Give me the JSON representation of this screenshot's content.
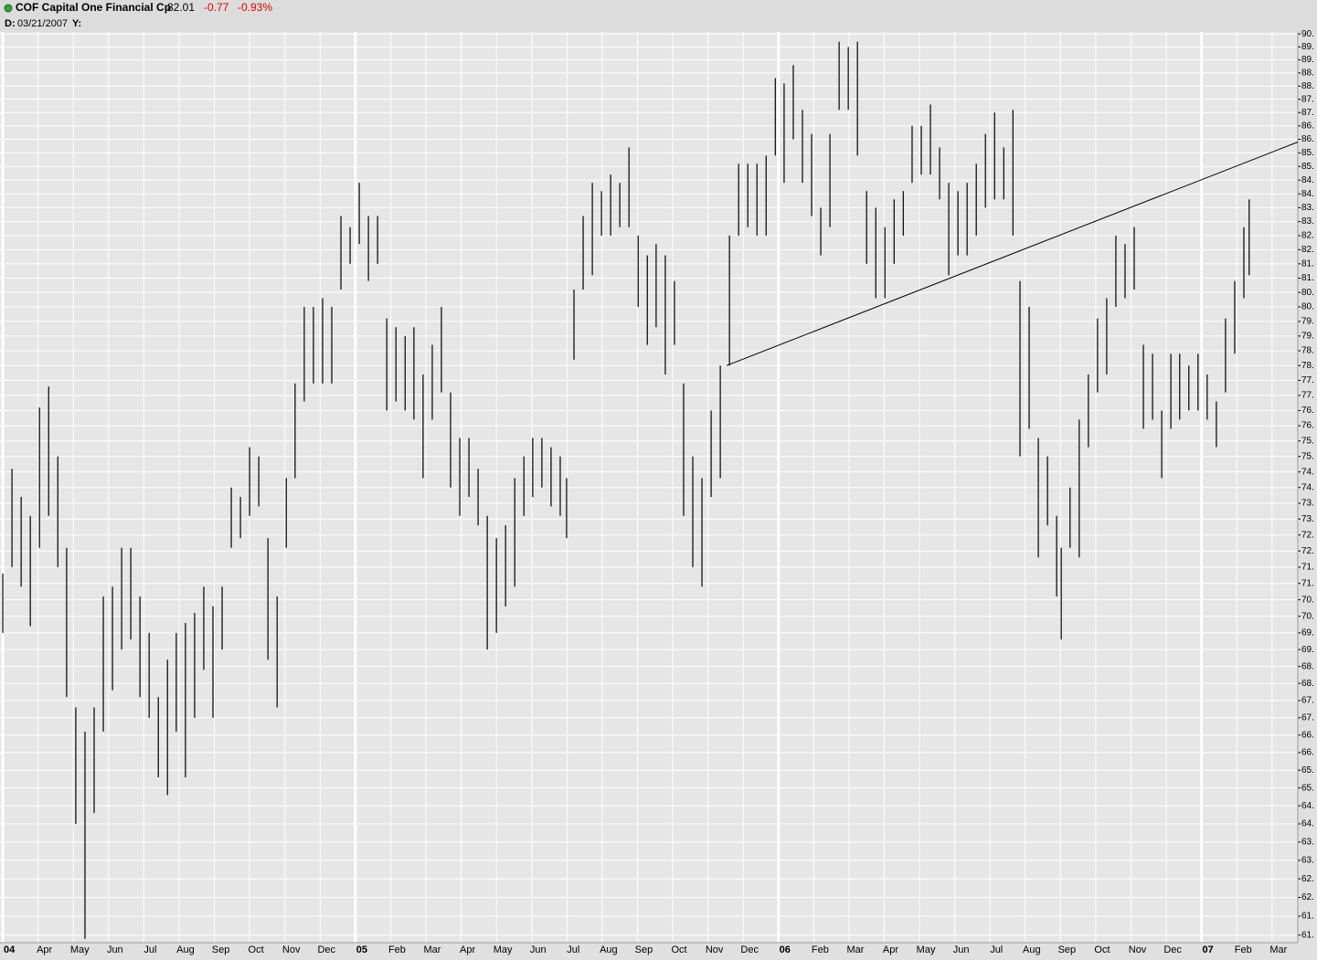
{
  "header": {
    "title": "COF Capital One Financial Cp",
    "last": "82.01",
    "change": "-0.77",
    "change_pct": "-0.93%",
    "date_label": "D:",
    "date": "03/21/2007",
    "y_label": "Y:"
  },
  "chart_data": {
    "type": "hilo",
    "log_scale": true,
    "grid": true,
    "color": "#000000",
    "xlim": [
      -0.08,
      36.73
    ],
    "ylim": [
      60.85,
      90.15
    ],
    "xticks": [
      {
        "value": 0,
        "label": "04"
      },
      {
        "value": 1,
        "label": "Apr"
      },
      {
        "value": 2,
        "label": "May"
      },
      {
        "value": 3,
        "label": "Jun"
      },
      {
        "value": 4,
        "label": "Jul"
      },
      {
        "value": 5,
        "label": "Aug"
      },
      {
        "value": 6,
        "label": "Sep"
      },
      {
        "value": 7,
        "label": "Oct"
      },
      {
        "value": 8,
        "label": "Nov"
      },
      {
        "value": 9,
        "label": "Dec"
      },
      {
        "value": 10,
        "label": "05"
      },
      {
        "value": 11,
        "label": "Feb"
      },
      {
        "value": 12,
        "label": "Mar"
      },
      {
        "value": 13,
        "label": "Apr"
      },
      {
        "value": 14,
        "label": "May"
      },
      {
        "value": 15,
        "label": "Jun"
      },
      {
        "value": 16,
        "label": "Jul"
      },
      {
        "value": 17,
        "label": "Aug"
      },
      {
        "value": 18,
        "label": "Sep"
      },
      {
        "value": 19,
        "label": "Oct"
      },
      {
        "value": 20,
        "label": "Nov"
      },
      {
        "value": 21,
        "label": "Dec"
      },
      {
        "value": 22,
        "label": "06"
      },
      {
        "value": 23,
        "label": "Feb"
      },
      {
        "value": 24,
        "label": "Mar"
      },
      {
        "value": 25,
        "label": "Apr"
      },
      {
        "value": 26,
        "label": "May"
      },
      {
        "value": 27,
        "label": "Jun"
      },
      {
        "value": 28,
        "label": "Jul"
      },
      {
        "value": 29,
        "label": "Aug"
      },
      {
        "value": 30,
        "label": "Sep"
      },
      {
        "value": 31,
        "label": "Oct"
      },
      {
        "value": 32,
        "label": "Nov"
      },
      {
        "value": 33,
        "label": "Dec"
      },
      {
        "value": 34,
        "label": "07"
      },
      {
        "value": 35,
        "label": "Feb"
      },
      {
        "value": 36,
        "label": "Mar"
      }
    ],
    "yticks": [
      {
        "value": 61,
        "label": "61."
      },
      {
        "value": 61.5,
        "label": "61."
      },
      {
        "value": 62,
        "label": "62."
      },
      {
        "value": 62.5,
        "label": "62."
      },
      {
        "value": 63,
        "label": "63."
      },
      {
        "value": 63.5,
        "label": "63."
      },
      {
        "value": 64,
        "label": "64."
      },
      {
        "value": 64.5,
        "label": "64."
      },
      {
        "value": 65,
        "label": "65."
      },
      {
        "value": 65.5,
        "label": "65."
      },
      {
        "value": 66,
        "label": "66."
      },
      {
        "value": 66.5,
        "label": "66."
      },
      {
        "value": 67,
        "label": "67."
      },
      {
        "value": 67.5,
        "label": "67."
      },
      {
        "value": 68,
        "label": "68."
      },
      {
        "value": 68.5,
        "label": "68."
      },
      {
        "value": 69,
        "label": "69."
      },
      {
        "value": 69.5,
        "label": "69."
      },
      {
        "value": 70,
        "label": "70."
      },
      {
        "value": 70.5,
        "label": "70."
      },
      {
        "value": 71,
        "label": "71."
      },
      {
        "value": 71.5,
        "label": "71."
      },
      {
        "value": 72,
        "label": "72."
      },
      {
        "value": 72.5,
        "label": "72."
      },
      {
        "value": 73,
        "label": "73."
      },
      {
        "value": 73.5,
        "label": "73."
      },
      {
        "value": 74,
        "label": "74."
      },
      {
        "value": 74.5,
        "label": "74."
      },
      {
        "value": 75,
        "label": "75."
      },
      {
        "value": 75.5,
        "label": "75."
      },
      {
        "value": 76,
        "label": "76."
      },
      {
        "value": 76.5,
        "label": "76."
      },
      {
        "value": 77,
        "label": "77."
      },
      {
        "value": 77.5,
        "label": "77."
      },
      {
        "value": 78,
        "label": "78."
      },
      {
        "value": 78.5,
        "label": "78."
      },
      {
        "value": 79,
        "label": "79."
      },
      {
        "value": 79.5,
        "label": "79."
      },
      {
        "value": 80,
        "label": "80."
      },
      {
        "value": 80.5,
        "label": "80."
      },
      {
        "value": 81,
        "label": "81."
      },
      {
        "value": 81.5,
        "label": "81."
      },
      {
        "value": 82,
        "label": "82."
      },
      {
        "value": 82.5,
        "label": "82."
      },
      {
        "value": 83,
        "label": "83."
      },
      {
        "value": 83.5,
        "label": "83."
      },
      {
        "value": 84,
        "label": "84."
      },
      {
        "value": 84.5,
        "label": "84."
      },
      {
        "value": 85,
        "label": "85."
      },
      {
        "value": 85.5,
        "label": "85."
      },
      {
        "value": 86,
        "label": "86."
      },
      {
        "value": 86.5,
        "label": "86."
      },
      {
        "value": 87,
        "label": "87."
      },
      {
        "value": 87.5,
        "label": "87."
      },
      {
        "value": 88,
        "label": "88."
      },
      {
        "value": 88.5,
        "label": "88."
      },
      {
        "value": 89,
        "label": "89."
      },
      {
        "value": 89.5,
        "label": "89."
      },
      {
        "value": 90,
        "label": "90."
      }
    ],
    "x": [
      0,
      0.26,
      0.52,
      0.78,
      1.04,
      1.3,
      1.56,
      1.81,
      2.07,
      2.33,
      2.59,
      2.85,
      3.11,
      3.37,
      3.63,
      3.89,
      4.15,
      4.41,
      4.67,
      4.92,
      5.18,
      5.44,
      5.7,
      5.96,
      6.22,
      6.48,
      6.74,
      7.0,
      7.26,
      7.52,
      7.78,
      8.04,
      8.29,
      8.55,
      8.81,
      9.07,
      9.33,
      9.59,
      9.85,
      10.11,
      10.37,
      10.63,
      10.89,
      11.15,
      11.41,
      11.66,
      11.92,
      12.18,
      12.44,
      12.7,
      12.96,
      13.22,
      13.48,
      13.74,
      14.0,
      14.26,
      14.52,
      14.78,
      15.03,
      15.29,
      15.55,
      15.81,
      15.99,
      16.2,
      16.46,
      16.72,
      16.98,
      17.24,
      17.5,
      17.76,
      18.02,
      18.28,
      18.53,
      18.79,
      19.05,
      19.31,
      19.57,
      19.83,
      20.09,
      20.35,
      20.61,
      20.87,
      21.13,
      21.39,
      21.65,
      21.91,
      22.16,
      22.42,
      22.68,
      22.94,
      23.2,
      23.46,
      23.72,
      23.98,
      24.24,
      24.5,
      24.76,
      25.02,
      25.28,
      25.54,
      25.79,
      26.05,
      26.31,
      26.57,
      26.83,
      27.09,
      27.35,
      27.61,
      27.87,
      28.13,
      28.39,
      28.65,
      28.85,
      29.11,
      29.37,
      29.63,
      29.89,
      30.02,
      30.27,
      30.53,
      30.79,
      31.05,
      31.31,
      31.57,
      31.83,
      32.09,
      32.35,
      32.61,
      32.87,
      33.13,
      33.38,
      33.64,
      33.9,
      34.16,
      34.42,
      34.68,
      34.94,
      35.2,
      35.35
    ],
    "high": [
      71.3,
      74.6,
      73.7,
      73.1,
      76.6,
      77.3,
      75.0,
      72.1,
      67.3,
      66.6,
      67.3,
      70.6,
      70.9,
      72.1,
      72.1,
      70.6,
      69.5,
      67.6,
      68.7,
      69.5,
      69.8,
      70.1,
      70.9,
      70.3,
      70.9,
      74.0,
      73.7,
      75.3,
      75.0,
      72.4,
      70.6,
      74.3,
      77.4,
      80.0,
      80.0,
      80.3,
      80.0,
      83.2,
      82.8,
      84.4,
      83.2,
      83.2,
      79.6,
      79.3,
      79.0,
      79.3,
      77.7,
      78.7,
      80.0,
      77.1,
      75.6,
      75.6,
      74.6,
      73.1,
      72.4,
      72.8,
      74.3,
      75.0,
      75.6,
      75.6,
      75.3,
      75.0,
      74.3,
      80.6,
      83.2,
      84.4,
      84.1,
      84.7,
      84.4,
      85.7,
      82.5,
      81.8,
      82.2,
      81.8,
      80.9,
      77.4,
      75.0,
      74.3,
      76.5,
      78.0,
      82.5,
      85.1,
      85.1,
      85.1,
      85.4,
      88.3,
      88.1,
      88.8,
      87.1,
      86.2,
      83.5,
      86.2,
      89.7,
      89.5,
      89.7,
      84.1,
      83.5,
      82.8,
      83.8,
      84.1,
      86.5,
      86.5,
      87.3,
      85.7,
      84.4,
      84.1,
      84.4,
      85.1,
      86.2,
      87.0,
      85.7,
      87.1,
      80.9,
      80.0,
      75.6,
      75.0,
      73.1,
      72.1,
      74.0,
      76.2,
      77.7,
      79.6,
      80.3,
      82.5,
      82.2,
      82.8,
      78.7,
      78.4,
      76.5,
      78.4,
      78.4,
      78.0,
      78.4,
      77.7,
      76.8,
      79.6,
      80.9,
      82.8,
      83.8
    ],
    "low": [
      69.5,
      71.5,
      70.9,
      69.7,
      72.1,
      73.1,
      71.5,
      67.6,
      64.0,
      60.9,
      64.3,
      66.6,
      67.8,
      69.0,
      69.3,
      67.6,
      67.0,
      65.3,
      64.8,
      66.6,
      65.3,
      67.0,
      68.4,
      67.0,
      69.0,
      72.1,
      72.4,
      73.1,
      73.4,
      68.7,
      67.3,
      72.1,
      74.3,
      76.8,
      77.4,
      77.4,
      77.4,
      80.6,
      81.5,
      82.2,
      80.9,
      81.5,
      76.5,
      76.8,
      76.5,
      76.2,
      74.3,
      76.2,
      77.1,
      74.0,
      73.1,
      73.7,
      72.8,
      69.0,
      69.5,
      70.3,
      70.9,
      73.1,
      73.7,
      74.0,
      73.4,
      73.1,
      72.4,
      78.2,
      80.6,
      81.1,
      82.5,
      82.5,
      82.8,
      82.8,
      80.0,
      78.7,
      79.3,
      77.7,
      78.7,
      73.1,
      71.5,
      70.9,
      73.7,
      74.3,
      78.0,
      82.5,
      82.8,
      82.5,
      82.5,
      85.4,
      84.4,
      86.0,
      84.4,
      83.2,
      81.8,
      82.8,
      87.1,
      87.1,
      85.4,
      81.5,
      80.3,
      80.3,
      81.5,
      82.5,
      84.4,
      84.7,
      84.7,
      83.8,
      81.1,
      81.8,
      81.8,
      82.5,
      83.5,
      83.8,
      83.8,
      82.5,
      75.0,
      75.9,
      71.8,
      72.8,
      70.6,
      69.3,
      72.1,
      71.8,
      75.3,
      77.1,
      77.7,
      80.0,
      80.3,
      80.6,
      75.9,
      76.2,
      74.3,
      75.9,
      76.2,
      76.5,
      76.5,
      76.2,
      75.3,
      77.1,
      78.4,
      80.3,
      81.1
    ],
    "trendline": {
      "x": [
        20.53,
        36.73
      ],
      "y": [
        78.0,
        85.9
      ]
    }
  }
}
